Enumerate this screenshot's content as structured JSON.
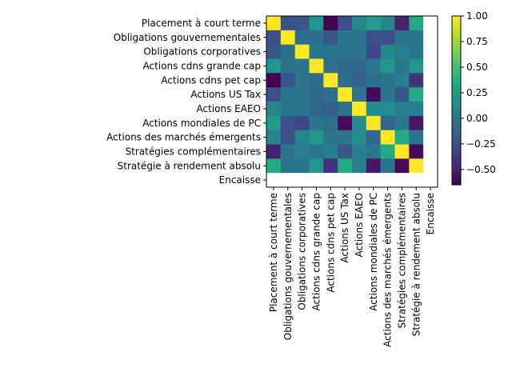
{
  "chart_data": {
    "type": "heatmap",
    "title": "",
    "xlabel": "",
    "ylabel": "",
    "labels": [
      "Placement à court terme",
      "Obligations gouvernementales",
      "Obligations corporatives",
      "Actions cdns grande cap",
      "Actions cdns pet cap",
      "Actions US Tax",
      "Actions EAEO",
      "Actions mondiales de PC",
      "Actions des marchés émergents",
      "Stratégies complémentaires",
      "Stratégie à rendement absolu",
      "Encaisse"
    ],
    "matrix": [
      [
        1.0,
        -0.25,
        -0.2,
        0.2,
        -0.65,
        -0.25,
        0.1,
        0.25,
        0.1,
        -0.5,
        0.35,
        null
      ],
      [
        -0.25,
        1.0,
        -0.05,
        -0.05,
        -0.2,
        0.0,
        0.0,
        -0.25,
        -0.25,
        0.0,
        0.0,
        null
      ],
      [
        -0.2,
        -0.05,
        1.0,
        0.0,
        0.0,
        0.0,
        0.0,
        -0.3,
        0.1,
        0.05,
        0.0,
        null
      ],
      [
        0.2,
        -0.05,
        0.0,
        1.0,
        -0.05,
        -0.1,
        -0.1,
        0.0,
        0.2,
        0.0,
        0.2,
        null
      ],
      [
        -0.65,
        -0.2,
        0.0,
        -0.05,
        1.0,
        -0.05,
        -0.15,
        -0.05,
        0.0,
        0.05,
        -0.4,
        null
      ],
      [
        -0.25,
        0.0,
        0.0,
        -0.1,
        -0.05,
        1.0,
        0.0,
        -0.6,
        0.0,
        -0.2,
        0.35,
        null
      ],
      [
        0.1,
        0.0,
        0.0,
        -0.1,
        -0.15,
        0.0,
        1.0,
        0.15,
        0.15,
        0.05,
        0.05,
        null
      ],
      [
        0.25,
        -0.25,
        -0.3,
        0.0,
        -0.05,
        -0.6,
        0.15,
        1.0,
        -0.1,
        0.0,
        -0.55,
        null
      ],
      [
        0.1,
        -0.25,
        0.1,
        0.2,
        0.0,
        0.0,
        0.15,
        -0.1,
        1.0,
        0.35,
        0.0,
        null
      ],
      [
        -0.5,
        0.0,
        0.05,
        0.0,
        0.05,
        -0.2,
        0.05,
        0.0,
        0.35,
        1.0,
        -0.6,
        null
      ],
      [
        0.35,
        0.0,
        0.0,
        0.2,
        -0.4,
        0.35,
        0.05,
        -0.55,
        0.0,
        -0.6,
        1.0,
        null
      ],
      [
        null,
        null,
        null,
        null,
        null,
        null,
        null,
        null,
        null,
        null,
        null,
        null
      ]
    ],
    "colorbar": {
      "min": -0.65,
      "max": 1.0,
      "ticks": [
        1.0,
        0.75,
        0.5,
        0.25,
        0.0,
        -0.25,
        -0.5
      ],
      "colormap": "viridis"
    },
    "missing_cell_color": "#ffffff"
  }
}
